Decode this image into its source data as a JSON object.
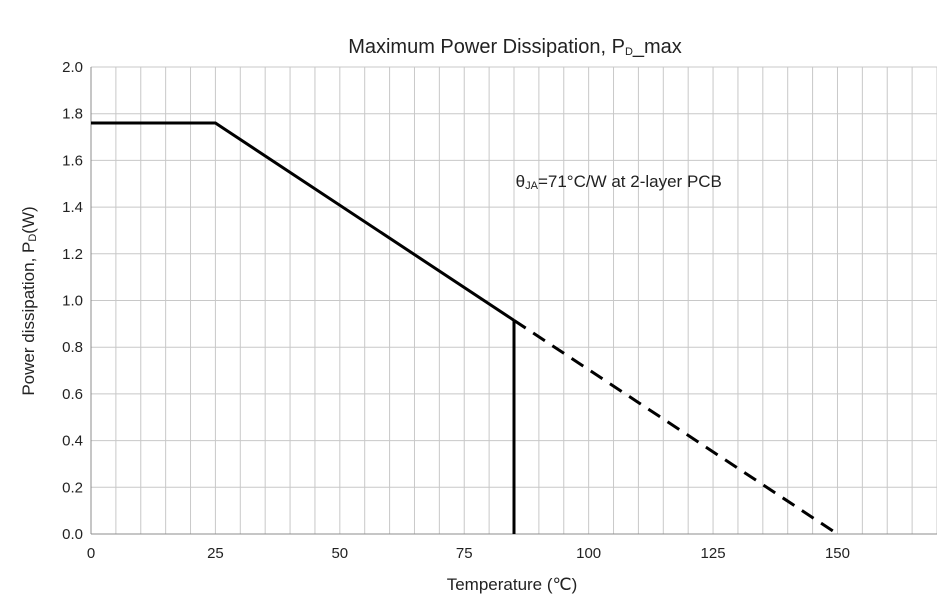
{
  "chart_data": {
    "type": "line",
    "title": {
      "main": "Maximum Power Dissipation, P",
      "sub": "D",
      "tail": "_max"
    },
    "xlabel": "Temperature (℃)",
    "ylabel": {
      "main": "Power dissipation, P",
      "sub": "D",
      "tail": "(W)"
    },
    "xlim": [
      0,
      170
    ],
    "ylim": [
      0,
      2.0
    ],
    "x_major_ticks": [
      0,
      25,
      50,
      75,
      100,
      125,
      150
    ],
    "x_tick_labels": [
      "0",
      "25",
      "50",
      "75",
      "100",
      "125",
      "150"
    ],
    "x_minor_step": 5,
    "y_ticks": [
      0.0,
      0.2,
      0.4,
      0.6,
      0.8,
      1.0,
      1.2,
      1.4,
      1.6,
      1.8,
      2.0
    ],
    "y_tick_labels": [
      "0.0",
      "0.2",
      "0.4",
      "0.6",
      "0.8",
      "1.0",
      "1.2",
      "1.4",
      "1.6",
      "1.8",
      "2.0"
    ],
    "grid": true,
    "legend": "none",
    "series": [
      {
        "style": "solid",
        "x": [
          0,
          25,
          85
        ],
        "y": [
          1.76,
          1.76,
          0.915
        ]
      },
      {
        "style": "solid",
        "x": [
          85,
          85
        ],
        "y": [
          0.915,
          0.0
        ]
      },
      {
        "style": "dashed",
        "x": [
          85,
          150
        ],
        "y": [
          0.915,
          0.0
        ]
      }
    ],
    "annotations": [
      {
        "prefix": "θ",
        "sub": "JA",
        "text": "=71°C/W at 2-layer PCB",
        "x": 100,
        "y": 1.52
      }
    ],
    "colors": {
      "line": "#000000",
      "grid": "#c8c8c8",
      "axis": "#8c8c8c"
    }
  }
}
